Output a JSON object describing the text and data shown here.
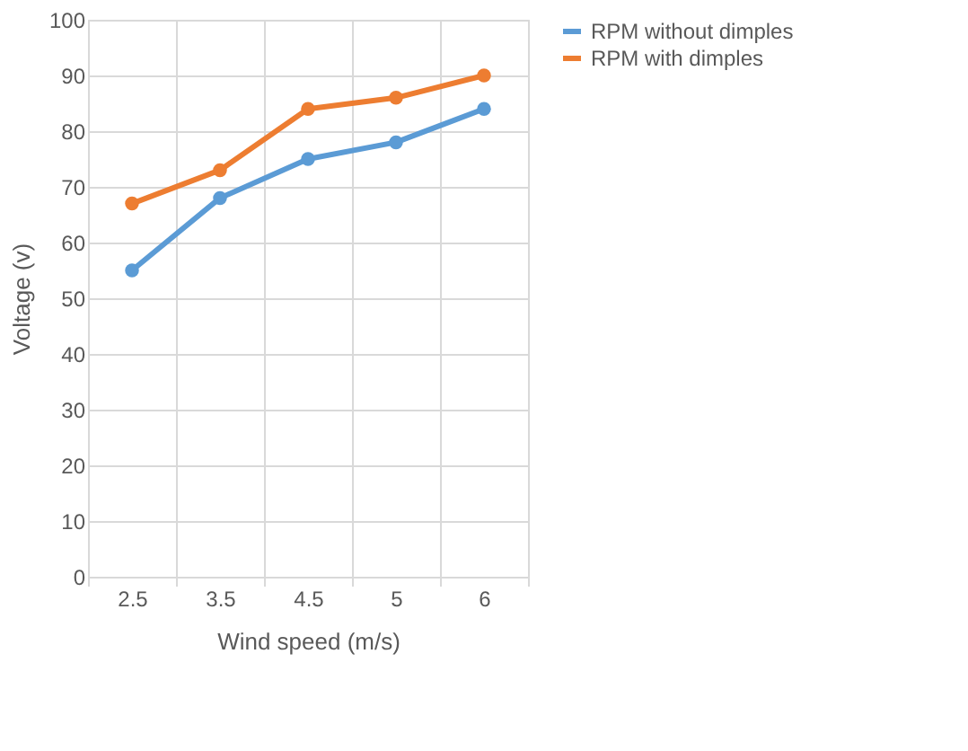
{
  "chart_data": {
    "type": "line",
    "xlabel": "Wind speed (m/s)",
    "ylabel": "Voltage (v)",
    "categories": [
      "2.5",
      "3.5",
      "4.5",
      "5",
      "6"
    ],
    "series": [
      {
        "name": "RPM without dimples",
        "color": "#5b9bd5",
        "values": [
          55,
          68,
          75,
          78,
          84
        ]
      },
      {
        "name": "RPM with dimples",
        "color": "#ed7d31",
        "values": [
          67,
          73,
          84,
          86,
          90
        ]
      }
    ],
    "ylim": [
      0,
      100
    ],
    "yticks": [
      0,
      10,
      20,
      30,
      40,
      50,
      60,
      70,
      80,
      90,
      100
    ],
    "grid": true,
    "legend": "right",
    "marker": "circle",
    "line_style": "solid"
  }
}
